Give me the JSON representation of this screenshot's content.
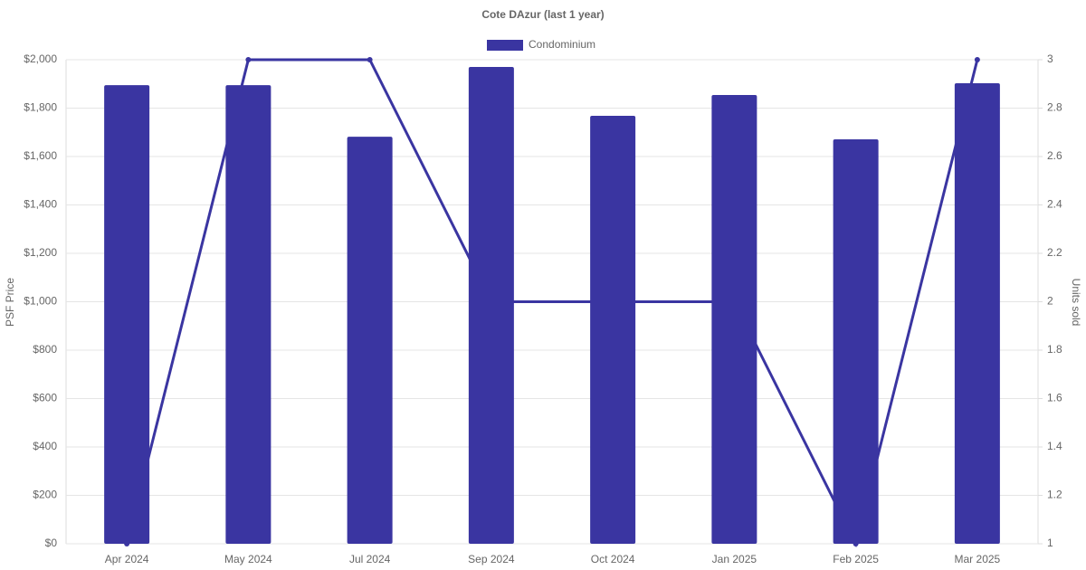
{
  "chart_data": {
    "type": "bar-line",
    "title": "Cote DAzur (last 1 year)",
    "y_label": "PSF Price",
    "y2_label": "Units sold",
    "categories": [
      "Apr 2024",
      "May 2024",
      "Jul 2024",
      "Sep 2024",
      "Oct 2024",
      "Jan 2025",
      "Feb 2025",
      "Mar 2025"
    ],
    "series": [
      {
        "name": "Condominium",
        "type": "bar",
        "color": "#3a35a1",
        "values": [
          1895,
          1895,
          1682,
          1970,
          1768,
          1854,
          1671,
          1903
        ]
      },
      {
        "type": "line",
        "color": "#3a35a1",
        "axis": "y2",
        "values": [
          1,
          3,
          3,
          2,
          2,
          2,
          1,
          3
        ]
      }
    ],
    "ylim": [
      0,
      2000
    ],
    "yticks": [
      {
        "value": 0,
        "label": "$0"
      },
      {
        "value": 200,
        "label": "$200"
      },
      {
        "value": 400,
        "label": "$400"
      },
      {
        "value": 600,
        "label": "$600"
      },
      {
        "value": 800,
        "label": "$800"
      },
      {
        "value": 1000,
        "label": "$1,000"
      },
      {
        "value": 1200,
        "label": "$1,200"
      },
      {
        "value": 1400,
        "label": "$1,400"
      },
      {
        "value": 1600,
        "label": "$1,600"
      },
      {
        "value": 1800,
        "label": "$1,800"
      },
      {
        "value": 2000,
        "label": "$2,000"
      }
    ],
    "y2lim": [
      1,
      3
    ],
    "y2ticks": [
      1,
      1.2,
      1.4,
      1.6,
      1.8,
      2,
      2.2,
      2.4,
      2.6,
      2.8,
      3
    ],
    "grid": true,
    "legend": "top"
  }
}
